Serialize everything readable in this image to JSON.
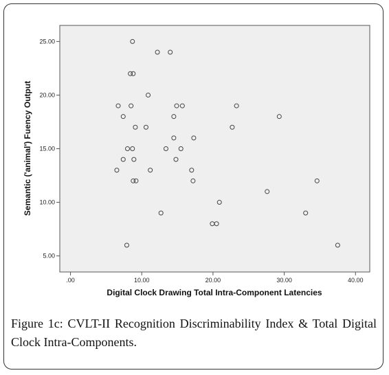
{
  "chart_data": {
    "type": "scatter",
    "xlabel": "Digital Clock Drawing  Total Intra-Component Latencies",
    "ylabel": "Semantic ('animal') Fuency Output",
    "xlim": [
      -1.5,
      42.0
    ],
    "ylim": [
      3.5,
      26.5
    ],
    "x_ticks": [
      ".00",
      "10.00",
      "20.00",
      "30.00",
      "40.00"
    ],
    "x_tick_values": [
      0,
      10,
      20,
      30,
      40
    ],
    "y_ticks": [
      "5.00",
      "10.00",
      "15.00",
      "20.00",
      "25.00"
    ],
    "y_tick_values": [
      5,
      10,
      15,
      20,
      25
    ],
    "grid": false,
    "colors": {
      "plot_background": "#efefef",
      "marker": "#444444"
    },
    "points": [
      {
        "x": 8.7,
        "y": 25
      },
      {
        "x": 12.2,
        "y": 24
      },
      {
        "x": 14.0,
        "y": 24
      },
      {
        "x": 8.4,
        "y": 22
      },
      {
        "x": 8.8,
        "y": 22
      },
      {
        "x": 10.9,
        "y": 20
      },
      {
        "x": 6.7,
        "y": 19
      },
      {
        "x": 8.5,
        "y": 19
      },
      {
        "x": 14.9,
        "y": 19
      },
      {
        "x": 15.7,
        "y": 19
      },
      {
        "x": 23.3,
        "y": 19
      },
      {
        "x": 7.4,
        "y": 18
      },
      {
        "x": 14.5,
        "y": 18
      },
      {
        "x": 29.3,
        "y": 18
      },
      {
        "x": 9.1,
        "y": 17
      },
      {
        "x": 10.6,
        "y": 17
      },
      {
        "x": 22.7,
        "y": 17
      },
      {
        "x": 14.5,
        "y": 16
      },
      {
        "x": 17.3,
        "y": 16
      },
      {
        "x": 8.0,
        "y": 15
      },
      {
        "x": 8.7,
        "y": 15
      },
      {
        "x": 13.4,
        "y": 15
      },
      {
        "x": 15.5,
        "y": 15
      },
      {
        "x": 7.4,
        "y": 14
      },
      {
        "x": 8.9,
        "y": 14
      },
      {
        "x": 14.8,
        "y": 14
      },
      {
        "x": 6.5,
        "y": 13
      },
      {
        "x": 11.2,
        "y": 13
      },
      {
        "x": 17.0,
        "y": 13
      },
      {
        "x": 8.8,
        "y": 12
      },
      {
        "x": 9.2,
        "y": 12
      },
      {
        "x": 17.2,
        "y": 12
      },
      {
        "x": 34.6,
        "y": 12
      },
      {
        "x": 27.6,
        "y": 11
      },
      {
        "x": 20.9,
        "y": 10
      },
      {
        "x": 12.7,
        "y": 9
      },
      {
        "x": 33.0,
        "y": 9
      },
      {
        "x": 19.9,
        "y": 8
      },
      {
        "x": 20.5,
        "y": 8
      },
      {
        "x": 7.9,
        "y": 6
      },
      {
        "x": 37.5,
        "y": 6
      }
    ]
  },
  "caption": {
    "label": "Figure 1c:",
    "text": " CVLT-II Recognition Discriminability Index & Total Digital Clock Intra-Components."
  }
}
